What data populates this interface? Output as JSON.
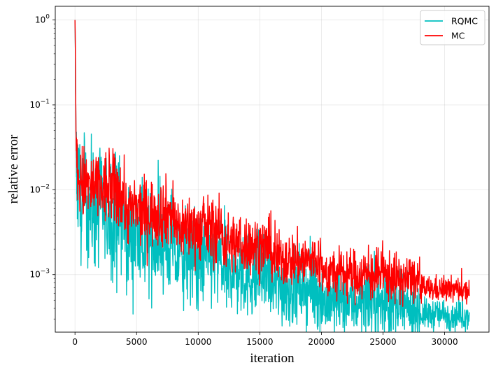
{
  "chart_data": {
    "type": "line",
    "xlabel": "iteration",
    "ylabel": "relative error",
    "xlim": [
      -1600,
      33600
    ],
    "ylim": [
      0.00021,
      1.45
    ],
    "yscale": "log",
    "grid": true,
    "legend_position": "top-right",
    "x_ticks": [
      {
        "value": 0,
        "label": "0"
      },
      {
        "value": 5000,
        "label": "5000"
      },
      {
        "value": 10000,
        "label": "10000"
      },
      {
        "value": 15000,
        "label": "15000"
      },
      {
        "value": 20000,
        "label": "20000"
      },
      {
        "value": 25000,
        "label": "25000"
      },
      {
        "value": 30000,
        "label": "30000"
      }
    ],
    "y_ticks": [
      {
        "value": 1,
        "base": "10",
        "exp": "0"
      },
      {
        "value": 0.1,
        "base": "10",
        "exp": "−1"
      },
      {
        "value": 0.01,
        "base": "10",
        "exp": "−2"
      },
      {
        "value": 0.001,
        "base": "10",
        "exp": "−3"
      }
    ],
    "series": [
      {
        "name": "RQMC",
        "color": "#00bfbf",
        "x": [
          0,
          20,
          50,
          80,
          120,
          200,
          400,
          700,
          1000,
          1500,
          2000,
          2500,
          3000,
          3500,
          3990,
          4000,
          4500,
          5000,
          6000,
          7000,
          7990,
          8000,
          9000,
          10000,
          11000,
          11990,
          12000,
          13000,
          14000,
          15000,
          15990,
          16000,
          17000,
          18000,
          19000,
          19990,
          20000,
          22000,
          24000,
          25990,
          26000,
          27000,
          27990,
          28000,
          29000,
          30000,
          31000,
          32000
        ],
        "y": [
          1.0,
          0.6,
          0.15,
          0.05,
          0.02,
          0.012,
          0.008,
          0.0072,
          0.0068,
          0.0062,
          0.0058,
          0.0055,
          0.0052,
          0.005,
          0.0048,
          0.0028,
          0.0027,
          0.0026,
          0.0025,
          0.0024,
          0.0023,
          0.0016,
          0.0015,
          0.00148,
          0.00145,
          0.0014,
          0.00105,
          0.001,
          0.00098,
          0.00095,
          0.00093,
          0.00072,
          0.0007,
          0.00068,
          0.00066,
          0.00065,
          0.00048,
          0.00047,
          0.00046,
          0.00045,
          0.00039,
          0.00038,
          0.00037,
          0.00034,
          0.00034,
          0.00034,
          0.00033,
          0.00033
        ],
        "noise": [
          0,
          0,
          0,
          0,
          0.3,
          0.6,
          0.7,
          0.7,
          0.7,
          0.7,
          0.7,
          0.7,
          0.7,
          0.7,
          0.7,
          0.6,
          0.6,
          0.6,
          0.6,
          0.6,
          0.6,
          0.55,
          0.55,
          0.55,
          0.55,
          0.55,
          0.5,
          0.5,
          0.5,
          0.5,
          0.5,
          0.45,
          0.45,
          0.45,
          0.45,
          0.45,
          0.4,
          0.4,
          0.4,
          0.4,
          0.35,
          0.35,
          0.35,
          0.18,
          0.18,
          0.18,
          0.18,
          0.18
        ]
      },
      {
        "name": "MC",
        "color": "#ff0000",
        "x": [
          0,
          20,
          50,
          80,
          120,
          200,
          400,
          700,
          1000,
          1500,
          2000,
          2500,
          3000,
          3500,
          3990,
          4000,
          5000,
          6000,
          7000,
          7990,
          8000,
          9000,
          10000,
          11000,
          11990,
          12000,
          13000,
          14000,
          15000,
          15990,
          16000,
          17000,
          18000,
          19000,
          19990,
          20000,
          22000,
          24000,
          25990,
          26000,
          27000,
          27990,
          28000,
          29000,
          30000,
          31000,
          32000
        ],
        "y": [
          1.0,
          0.6,
          0.15,
          0.05,
          0.025,
          0.016,
          0.0125,
          0.0115,
          0.011,
          0.0105,
          0.0102,
          0.01,
          0.0098,
          0.0096,
          0.0094,
          0.0058,
          0.0056,
          0.0055,
          0.0054,
          0.0053,
          0.0037,
          0.0036,
          0.0035,
          0.0034,
          0.0033,
          0.0024,
          0.0023,
          0.00225,
          0.0022,
          0.0021,
          0.00155,
          0.0015,
          0.00148,
          0.00145,
          0.0014,
          0.00105,
          0.001,
          0.00098,
          0.00095,
          0.00088,
          0.00087,
          0.00085,
          0.00068,
          0.00068,
          0.00067,
          0.00067,
          0.00066
        ],
        "noise": [
          0,
          0,
          0,
          0,
          0.25,
          0.4,
          0.45,
          0.45,
          0.45,
          0.45,
          0.45,
          0.45,
          0.45,
          0.45,
          0.45,
          0.4,
          0.4,
          0.4,
          0.4,
          0.4,
          0.38,
          0.38,
          0.38,
          0.38,
          0.38,
          0.35,
          0.35,
          0.35,
          0.35,
          0.35,
          0.32,
          0.32,
          0.32,
          0.32,
          0.32,
          0.3,
          0.3,
          0.3,
          0.3,
          0.28,
          0.28,
          0.28,
          0.15,
          0.15,
          0.15,
          0.15,
          0.15
        ]
      }
    ]
  }
}
